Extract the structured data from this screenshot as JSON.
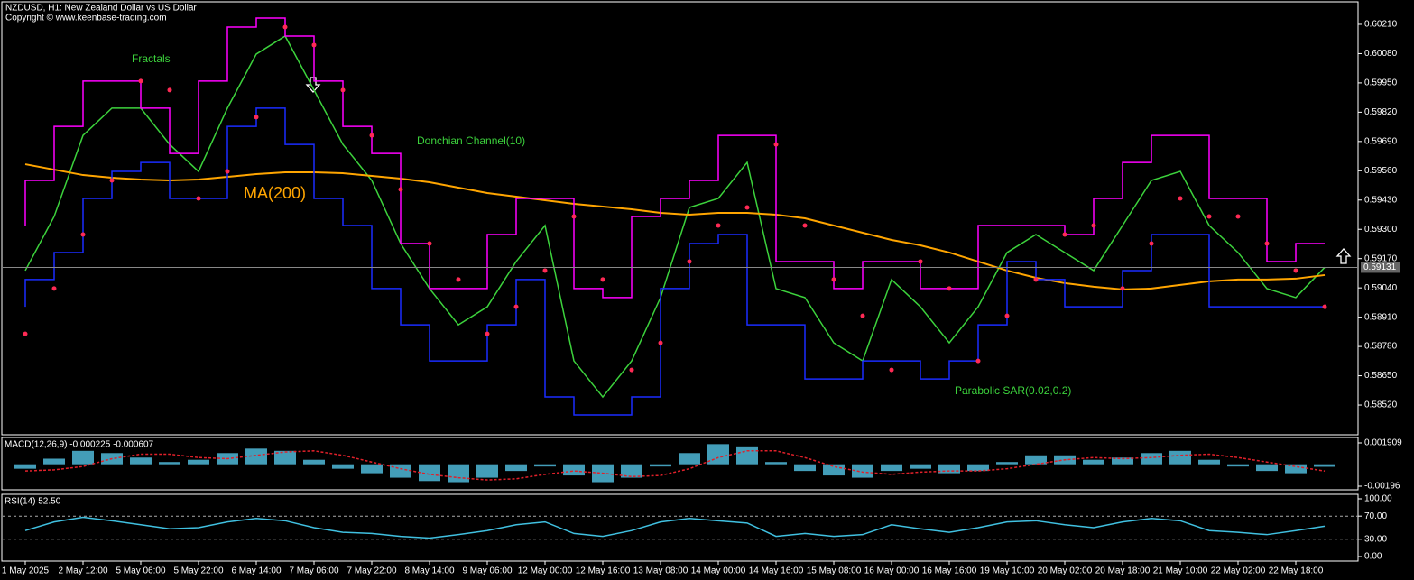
{
  "chart_data": [
    {
      "type": "line",
      "title": "NZDUSD, H1:  New Zealand Dollar vs US Dollar",
      "subtitle": "Copyright © www.keenbase-trading.com",
      "annotations": [
        "Fractals"
      ],
      "current_price": 0.59131,
      "ylim": [
        0.58388,
        0.6031
      ],
      "yticks": [
        {
          "value": 0.6021,
          "label": "0.60210"
        },
        {
          "value": 0.6008,
          "label": "0.60080"
        },
        {
          "value": 0.5995,
          "label": "0.59950"
        },
        {
          "value": 0.5982,
          "label": "0.59820"
        },
        {
          "value": 0.5969,
          "label": "0.59690"
        },
        {
          "value": 0.5956,
          "label": "0.59560"
        },
        {
          "value": 0.5943,
          "label": "0.59430"
        },
        {
          "value": 0.593,
          "label": "0.59300"
        },
        {
          "value": 0.5917,
          "label": "0.59170"
        },
        {
          "value": 0.5904,
          "label": "0.59040"
        },
        {
          "value": 0.5891,
          "label": "0.58910"
        },
        {
          "value": 0.5878,
          "label": "0.58780"
        },
        {
          "value": 0.5865,
          "label": "0.58650"
        },
        {
          "value": 0.5852,
          "label": "0.58520"
        }
      ],
      "series": [
        {
          "color": "#3cd23c",
          "style": "line",
          "values": [
            0.59117,
            0.59357,
            0.59717,
            0.59838,
            0.59838,
            0.59677,
            0.59557,
            0.59838,
            0.60078,
            0.60158,
            0.59918,
            0.59677,
            0.59517,
            0.59237,
            0.59037,
            0.58876,
            0.58956,
            0.59157,
            0.59317,
            0.58716,
            0.58556,
            0.58716,
            0.58997,
            0.59397,
            0.59437,
            0.59597,
            0.59037,
            0.58997,
            0.58796,
            0.58716,
            0.59077,
            0.58956,
            0.58796,
            0.58956,
            0.59197,
            0.59277,
            0.59197,
            0.59117,
            0.59317,
            0.59517,
            0.59557,
            0.59317,
            0.59197,
            0.59037,
            0.58997,
            0.59131
          ]
        },
        {
          "name": "MA(200)",
          "color": "#ffa500",
          "style": "line",
          "values": [
            0.59589,
            0.59565,
            0.59541,
            0.59529,
            0.59521,
            0.59517,
            0.59521,
            0.59533,
            0.59545,
            0.59553,
            0.59553,
            0.59549,
            0.59537,
            0.59525,
            0.59509,
            0.59485,
            0.59461,
            0.59445,
            0.59429,
            0.59413,
            0.59401,
            0.59389,
            0.59373,
            0.59365,
            0.59373,
            0.59373,
            0.59365,
            0.59349,
            0.59317,
            0.59285,
            0.59253,
            0.59229,
            0.59197,
            0.59157,
            0.59117,
            0.59085,
            0.59061,
            0.59045,
            0.59033,
            0.59037,
            0.59053,
            0.59069,
            0.59077,
            0.59077,
            0.59081,
            0.59097
          ]
        },
        {
          "name": "Donchian Channel(10)",
          "color": "#ff00ff",
          "style": "step",
          "values": [
            0.59317,
            0.59517,
            0.59757,
            0.59958,
            0.59958,
            0.59838,
            0.59637,
            0.59958,
            0.60198,
            0.60238,
            0.60158,
            0.59958,
            0.59757,
            0.59637,
            0.59237,
            0.59037,
            0.59037,
            0.59277,
            0.59437,
            0.59437,
            0.59037,
            0.58997,
            0.59357,
            0.59437,
            0.59517,
            0.59717,
            0.59717,
            0.59157,
            0.59157,
            0.59037,
            0.59157,
            0.59157,
            0.59037,
            0.59037,
            0.59317,
            0.59317,
            0.59317,
            0.59277,
            0.59437,
            0.59597,
            0.59717,
            0.59717,
            0.59437,
            0.59437,
            0.59157,
            0.59237
          ]
        },
        {
          "color": "#1a2cff",
          "style": "step",
          "values": [
            0.58956,
            0.59077,
            0.59197,
            0.59437,
            0.59557,
            0.59597,
            0.59437,
            0.59437,
            0.59757,
            0.59838,
            0.59677,
            0.59437,
            0.59317,
            0.59037,
            0.58876,
            0.58716,
            0.58716,
            0.58876,
            0.59077,
            0.58556,
            0.58476,
            0.58476,
            0.58556,
            0.59037,
            0.59237,
            0.59277,
            0.58876,
            0.58876,
            0.58636,
            0.58636,
            0.58716,
            0.58716,
            0.58636,
            0.58716,
            0.58876,
            0.59157,
            0.59077,
            0.58956,
            0.58956,
            0.59117,
            0.59277,
            0.59277,
            0.58956,
            0.58956,
            0.58956,
            0.58956
          ]
        },
        {
          "name": "Parabolic SAR(0.02,0.2)",
          "color": "#ff2a55",
          "style": "dots",
          "values": [
            0.58836,
            0.59037,
            0.59277,
            0.59517,
            0.59958,
            0.59918,
            0.59437,
            0.59557,
            0.59798,
            0.60198,
            0.60118,
            0.59918,
            0.59717,
            0.59477,
            0.59237,
            0.59077,
            0.58836,
            0.58956,
            0.59117,
            0.59357,
            0.59077,
            0.58676,
            0.58796,
            0.59157,
            0.59317,
            0.59397,
            0.59677,
            0.59317,
            0.59077,
            0.58916,
            0.58676,
            0.59157,
            0.59037,
            0.58716,
            0.58916,
            0.59077,
            0.59277,
            0.59317,
            0.59037,
            0.59237,
            0.59437,
            0.59357,
            0.59357,
            0.59237,
            0.59117,
            0.58956
          ]
        }
      ]
    },
    {
      "type": "bar",
      "title": "MACD(12,26,9) -0.000225 -0.000607",
      "ylim": [
        -0.002282,
        0.002393
      ],
      "yticks": [
        0.001909,
        -0.00196
      ],
      "series": [
        {
          "color": "#4fb8d8",
          "style": "bars",
          "values": [
            -0.0004,
            0.0005,
            0.0012,
            0.001,
            0.0006,
            0.0002,
            0.0004,
            0.001,
            0.0014,
            0.0012,
            0.0004,
            -0.0004,
            -0.0008,
            -0.0012,
            -0.0015,
            -0.0016,
            -0.0012,
            -0.0006,
            -0.0002,
            -0.001,
            -0.0016,
            -0.0012,
            -0.0002,
            0.001,
            0.0018,
            0.0016,
            0.0002,
            -0.0006,
            -0.001,
            -0.0012,
            -0.0006,
            -0.0004,
            -0.0008,
            -0.0006,
            0.0002,
            0.0008,
            0.0008,
            0.0004,
            0.0006,
            0.001,
            0.0012,
            0.0004,
            -0.0002,
            -0.0006,
            -0.0008,
            -0.000225
          ]
        },
        {
          "color": "#e0202a",
          "style": "dashed",
          "values": [
            -0.0006,
            -0.0005,
            -0.0002,
            0.0005,
            0.0009,
            0.0009,
            0.0006,
            0.0005,
            0.0008,
            0.0011,
            0.0012,
            0.0008,
            0.0002,
            -0.0004,
            -0.0009,
            -0.0012,
            -0.0014,
            -0.0013,
            -0.0009,
            -0.0006,
            -0.0008,
            -0.0011,
            -0.001,
            -0.0004,
            0.0006,
            0.0012,
            0.0012,
            0.0006,
            -0.0002,
            -0.0007,
            -0.0009,
            -0.0007,
            -0.0006,
            -0.0006,
            -0.0004,
            0,
            0.0004,
            0.0006,
            0.0005,
            0.0006,
            0.0008,
            0.0009,
            0.0006,
            0.0002,
            -0.0002,
            -0.000607
          ]
        }
      ]
    },
    {
      "type": "line",
      "title": "RSI(14) 52.50",
      "ylim": [
        -7.8,
        107.8
      ],
      "yticks": [
        {
          "value": 100,
          "label": "100.00"
        },
        {
          "value": 70,
          "label": "70.00"
        },
        {
          "value": 30,
          "label": "30.00"
        },
        {
          "value": 0,
          "label": "0.00"
        }
      ],
      "levels": [
        70,
        30
      ],
      "categories": [
        "1 May 2025",
        null,
        "2 May 12:00",
        null,
        "5 May 06:00",
        null,
        "5 May 22:00",
        null,
        "6 May 14:00",
        null,
        "7 May 06:00",
        null,
        "7 May 22:00",
        null,
        "8 May 14:00",
        null,
        "9 May 06:00",
        null,
        "12 May 00:00",
        null,
        "12 May 16:00",
        null,
        "13 May 08:00",
        null,
        "14 May 00:00",
        null,
        "14 May 16:00",
        null,
        "15 May 08:00",
        null,
        "16 May 00:00",
        null,
        "16 May 16:00",
        null,
        "19 May 10:00",
        null,
        "20 May 02:00",
        null,
        "20 May 18:00",
        null,
        "21 May 10:00",
        null,
        "22 May 02:00",
        null,
        "22 May 18:00",
        null
      ],
      "series": [
        {
          "color": "#40c0e0",
          "style": "line",
          "values": [
            45,
            60,
            68,
            62,
            55,
            48,
            50,
            60,
            66,
            62,
            50,
            42,
            40,
            35,
            32,
            38,
            45,
            55,
            60,
            40,
            35,
            45,
            60,
            66,
            62,
            58,
            35,
            40,
            35,
            38,
            55,
            48,
            42,
            50,
            60,
            62,
            55,
            50,
            60,
            66,
            62,
            45,
            42,
            38,
            45,
            52.5
          ]
        }
      ]
    }
  ]
}
